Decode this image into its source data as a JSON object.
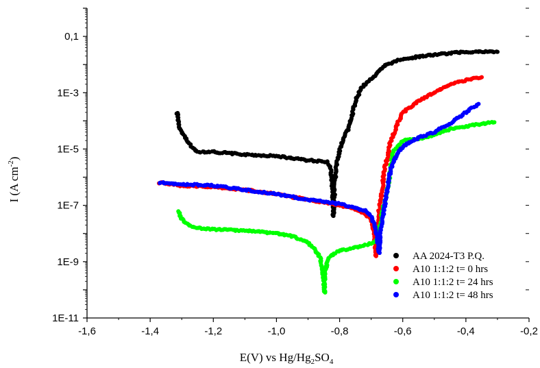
{
  "chart_data": {
    "type": "scatter",
    "title": "",
    "xlabel": "E(V) vs Hg/Hg2SO4",
    "xlabel_parts": {
      "main": "E(V) vs Hg/Hg",
      "sub1": "2",
      "mid": "SO",
      "sub2": "4"
    },
    "ylabel": "I (A cm-2)",
    "ylabel_parts": {
      "main": "I (A cm",
      "sup": "-2",
      "end": ")"
    },
    "xlim": [
      -1.6,
      -0.2
    ],
    "ylim_log10": [
      -11,
      0
    ],
    "y_scale": "log",
    "x_ticks": [
      "-1,6",
      "-1,4",
      "-1,2",
      "-1,0",
      "-0,8",
      "-0,6",
      "-0,4",
      "-0,2"
    ],
    "x_tick_values": [
      -1.6,
      -1.4,
      -1.2,
      -1.0,
      -0.8,
      -0.6,
      -0.4,
      -0.2
    ],
    "y_ticks": [
      "0,1",
      "1E-3",
      "1E-5",
      "1E-7",
      "1E-9",
      "1E-11"
    ],
    "y_tick_exponents": [
      -1,
      -3,
      -5,
      -7,
      -9,
      -11
    ],
    "grid": false,
    "legend_position": "bottom-right",
    "series": [
      {
        "name": "AA 2024-T3 P.Q.",
        "color": "#000000",
        "points": [
          [
            -1.315,
            -3.7
          ],
          [
            -1.31,
            -4.0
          ],
          [
            -1.305,
            -4.3
          ],
          [
            -1.29,
            -4.6
          ],
          [
            -1.27,
            -4.9
          ],
          [
            -1.25,
            -5.1
          ],
          [
            -1.2,
            -5.1
          ],
          [
            -1.1,
            -5.2
          ],
          [
            -1.0,
            -5.25
          ],
          [
            -0.9,
            -5.4
          ],
          [
            -0.84,
            -5.45
          ],
          [
            -0.83,
            -5.6
          ],
          [
            -0.825,
            -6.0
          ],
          [
            -0.822,
            -6.5
          ],
          [
            -0.82,
            -7.0
          ],
          [
            -0.82,
            -7.4
          ],
          [
            -0.815,
            -6.2
          ],
          [
            -0.81,
            -5.6
          ],
          [
            -0.8,
            -5.0
          ],
          [
            -0.79,
            -4.7
          ],
          [
            -0.77,
            -4.2
          ],
          [
            -0.75,
            -3.3
          ],
          [
            -0.73,
            -2.8
          ],
          [
            -0.7,
            -2.5
          ],
          [
            -0.65,
            -2.0
          ],
          [
            -0.6,
            -1.8
          ],
          [
            -0.5,
            -1.65
          ],
          [
            -0.4,
            -1.55
          ],
          [
            -0.3,
            -1.55
          ]
        ]
      },
      {
        "name": "A10 1:1:2 t= 0 hrs",
        "color": "#ff0000",
        "points": [
          [
            -1.37,
            -6.2
          ],
          [
            -1.3,
            -6.3
          ],
          [
            -1.2,
            -6.35
          ],
          [
            -1.1,
            -6.45
          ],
          [
            -1.0,
            -6.6
          ],
          [
            -0.9,
            -6.8
          ],
          [
            -0.8,
            -7.0
          ],
          [
            -0.75,
            -7.15
          ],
          [
            -0.72,
            -7.3
          ],
          [
            -0.7,
            -7.5
          ],
          [
            -0.69,
            -8.0
          ],
          [
            -0.685,
            -8.8
          ],
          [
            -0.68,
            -7.8
          ],
          [
            -0.675,
            -7.2
          ],
          [
            -0.67,
            -6.8
          ],
          [
            -0.665,
            -6.5
          ],
          [
            -0.66,
            -5.8
          ],
          [
            -0.65,
            -5.4
          ],
          [
            -0.64,
            -4.8
          ],
          [
            -0.62,
            -4.2
          ],
          [
            -0.6,
            -3.7
          ],
          [
            -0.55,
            -3.3
          ],
          [
            -0.5,
            -3.0
          ],
          [
            -0.45,
            -2.7
          ],
          [
            -0.4,
            -2.55
          ],
          [
            -0.35,
            -2.45
          ]
        ]
      },
      {
        "name": "A10 1:1:2 t= 24 hrs",
        "color": "#00ff00",
        "points": [
          [
            -1.31,
            -7.2
          ],
          [
            -1.3,
            -7.5
          ],
          [
            -1.28,
            -7.7
          ],
          [
            -1.25,
            -7.8
          ],
          [
            -1.2,
            -7.85
          ],
          [
            -1.1,
            -7.9
          ],
          [
            -1.0,
            -8.0
          ],
          [
            -0.95,
            -8.1
          ],
          [
            -0.9,
            -8.3
          ],
          [
            -0.88,
            -8.55
          ],
          [
            -0.86,
            -8.9
          ],
          [
            -0.855,
            -9.3
          ],
          [
            -0.85,
            -9.7
          ],
          [
            -0.848,
            -10.1
          ],
          [
            -0.845,
            -9.4
          ],
          [
            -0.84,
            -9.0
          ],
          [
            -0.83,
            -8.8
          ],
          [
            -0.8,
            -8.6
          ],
          [
            -0.75,
            -8.5
          ],
          [
            -0.7,
            -8.35
          ],
          [
            -0.68,
            -8.2
          ],
          [
            -0.67,
            -7.6
          ],
          [
            -0.66,
            -7.0
          ],
          [
            -0.65,
            -6.6
          ],
          [
            -0.64,
            -5.8
          ],
          [
            -0.63,
            -5.1
          ],
          [
            -0.6,
            -4.7
          ],
          [
            -0.55,
            -4.65
          ],
          [
            -0.5,
            -4.5
          ],
          [
            -0.45,
            -4.3
          ],
          [
            -0.4,
            -4.2
          ],
          [
            -0.35,
            -4.1
          ],
          [
            -0.31,
            -4.05
          ]
        ]
      },
      {
        "name": "A10 1:1:2 t= 48 hrs",
        "color": "#0000ff",
        "points": [
          [
            -1.37,
            -6.2
          ],
          [
            -1.3,
            -6.25
          ],
          [
            -1.2,
            -6.3
          ],
          [
            -1.1,
            -6.45
          ],
          [
            -1.0,
            -6.6
          ],
          [
            -0.9,
            -6.8
          ],
          [
            -0.8,
            -6.95
          ],
          [
            -0.75,
            -7.1
          ],
          [
            -0.72,
            -7.2
          ],
          [
            -0.7,
            -7.4
          ],
          [
            -0.69,
            -7.7
          ],
          [
            -0.68,
            -8.2
          ],
          [
            -0.675,
            -8.7
          ],
          [
            -0.67,
            -7.8
          ],
          [
            -0.66,
            -7.2
          ],
          [
            -0.65,
            -6.5
          ],
          [
            -0.64,
            -5.8
          ],
          [
            -0.62,
            -5.2
          ],
          [
            -0.6,
            -4.9
          ],
          [
            -0.55,
            -4.6
          ],
          [
            -0.5,
            -4.4
          ],
          [
            -0.45,
            -4.1
          ],
          [
            -0.4,
            -3.7
          ],
          [
            -0.36,
            -3.4
          ]
        ]
      }
    ]
  }
}
